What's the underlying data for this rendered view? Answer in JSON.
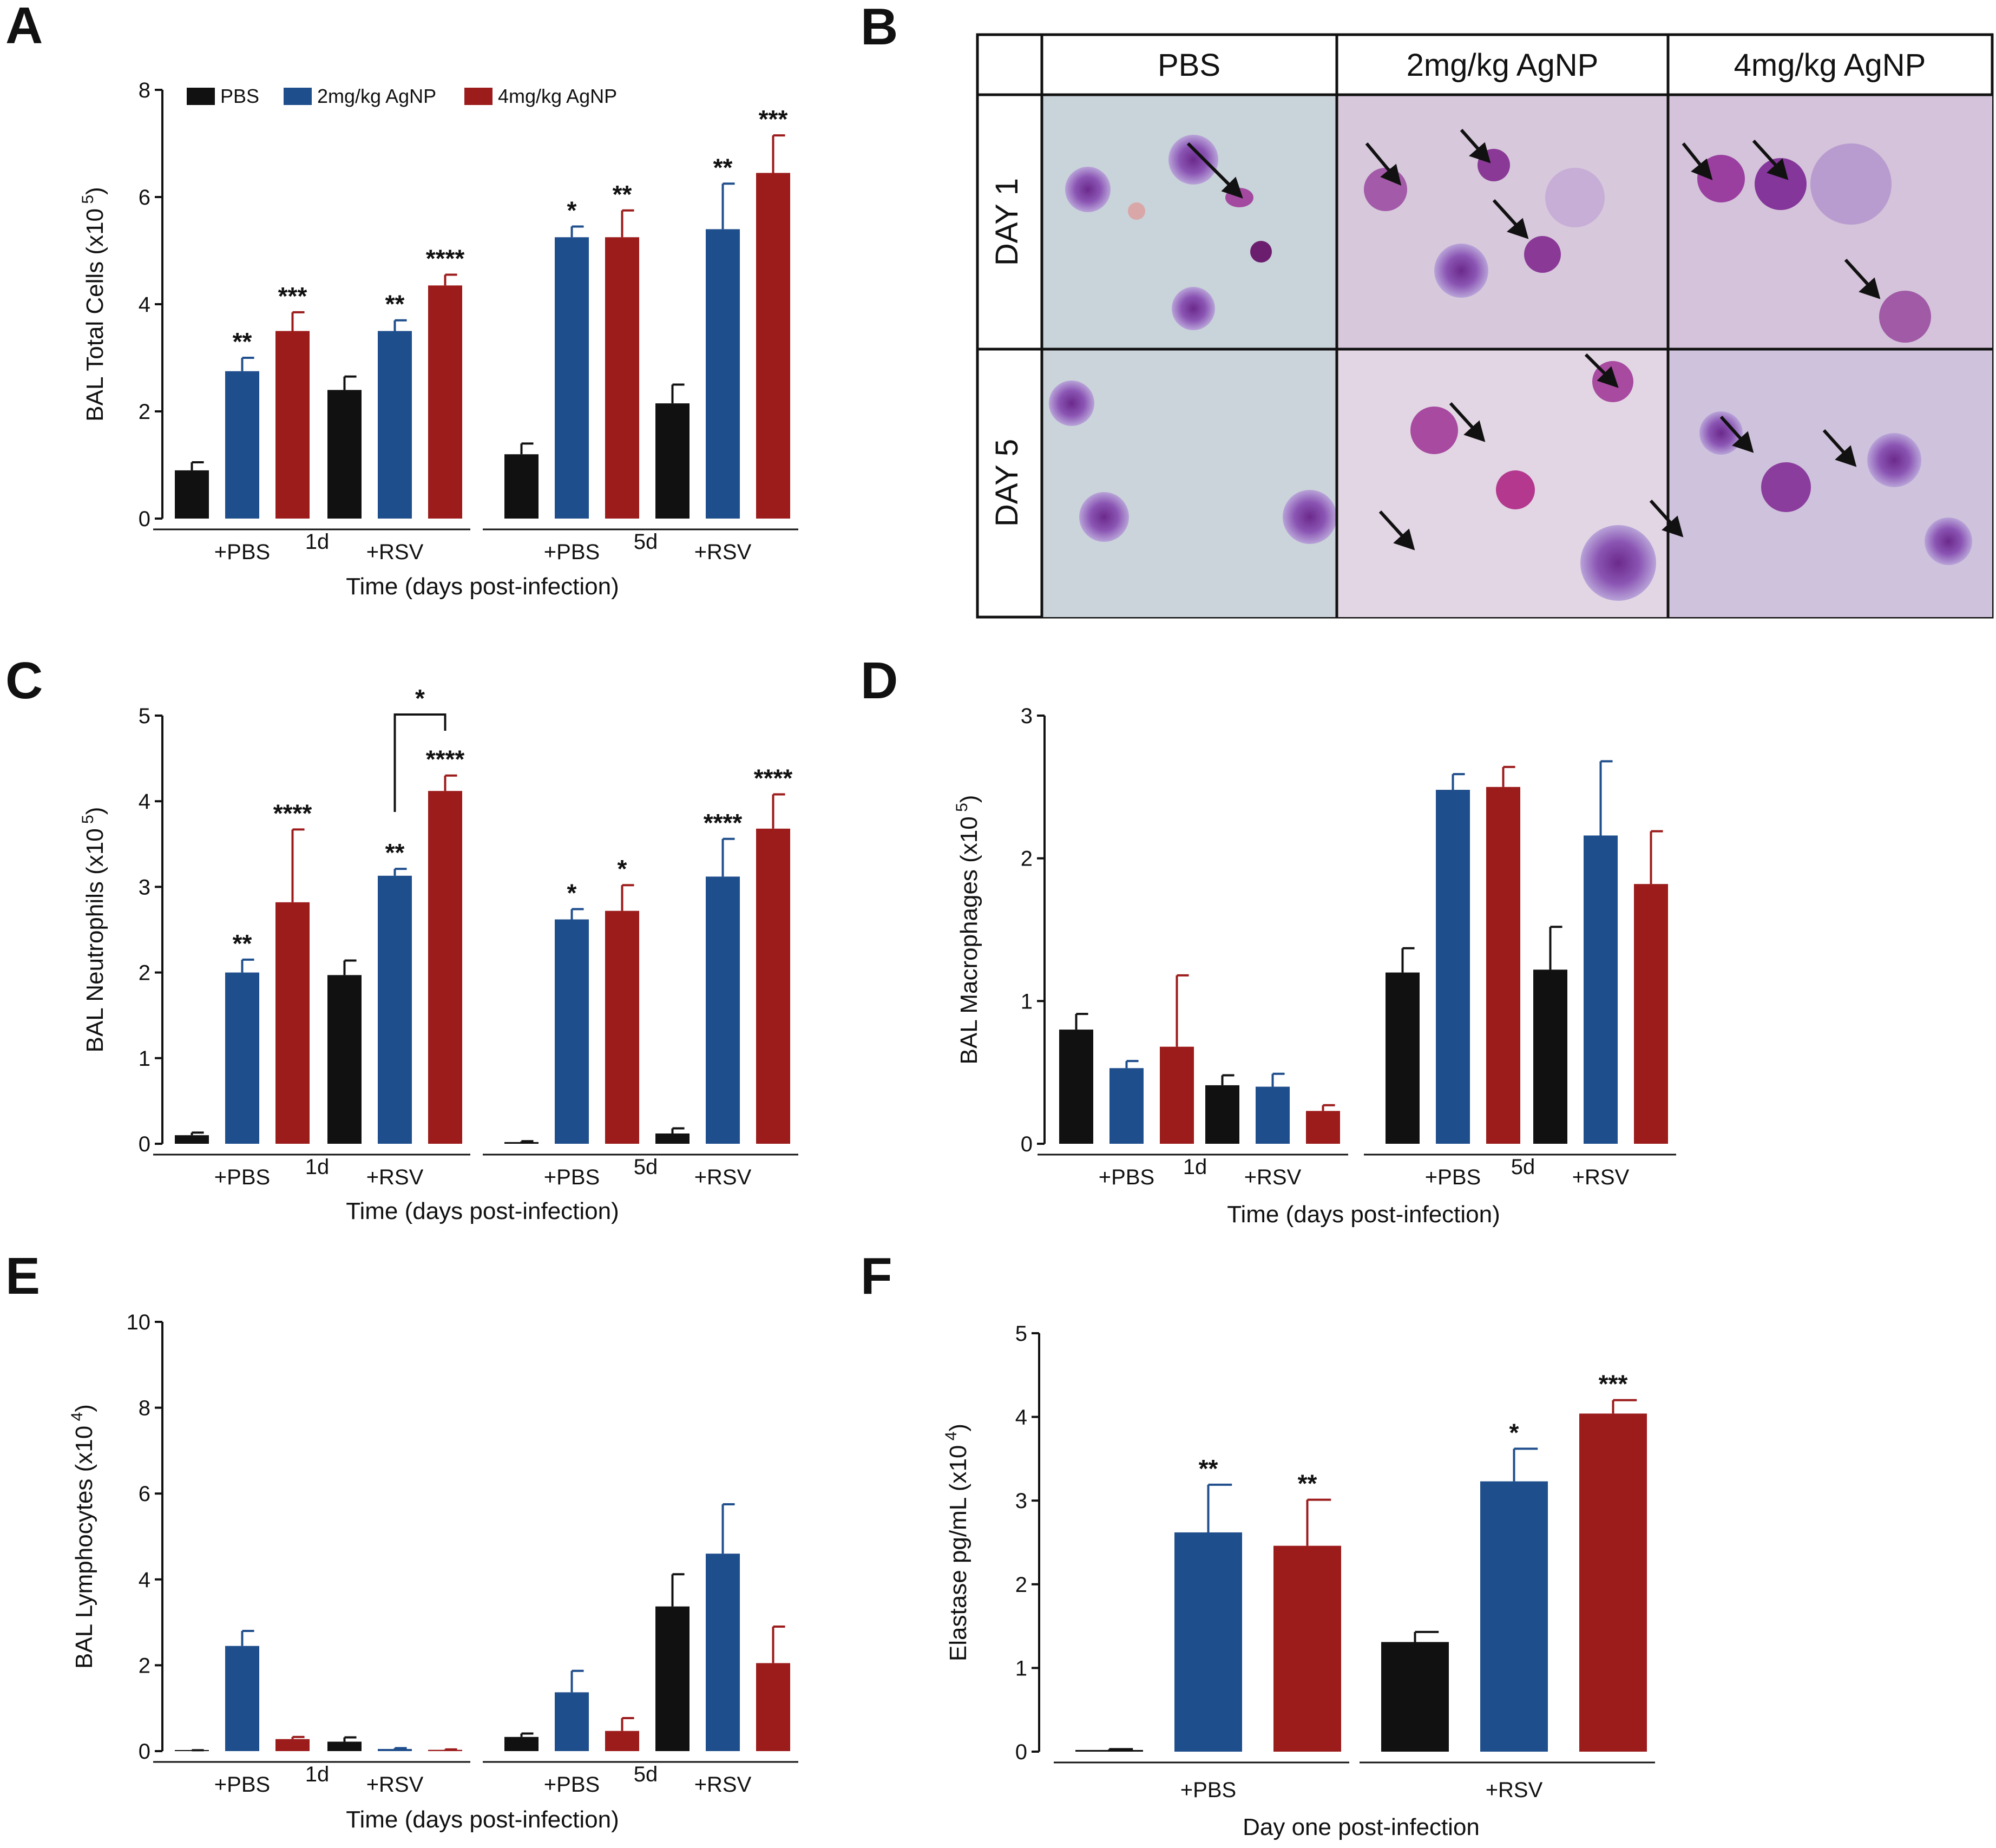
{
  "colors": {
    "PBS": "#111111",
    "2mg/kg AgNP": "#1f4e8c",
    "4mg/kg AgNP": "#9c1b1b",
    "axis": "#111111"
  },
  "legend": {
    "items": [
      "PBS",
      "2mg/kg AgNP",
      "4mg/kg AgNP"
    ]
  },
  "panel_B": {
    "letter": "B",
    "columns": [
      "PBS",
      "2mg/kg AgNP",
      "4mg/kg AgNP"
    ],
    "rows": [
      "DAY 1",
      "DAY 5"
    ]
  },
  "chart_data": [
    {
      "panel": "A",
      "type": "bar",
      "ylabel": "BAL Total Cells (x10",
      "ylabel_exp": "5",
      "ylabel_close": ")",
      "xlabel": "Time (days post-infection)",
      "ylim": [
        0,
        8
      ],
      "yticks": [
        0,
        2,
        4,
        6,
        8
      ],
      "series_names": [
        "PBS",
        "2mg/kg AgNP",
        "4mg/kg AgNP"
      ],
      "groups": [
        {
          "label": "+PBS",
          "day": "1d",
          "values": [
            0.9,
            2.75,
            3.5
          ],
          "errors": [
            0.15,
            0.25,
            0.35
          ],
          "stars": [
            "",
            "**",
            "***"
          ]
        },
        {
          "label": "+RSV",
          "day": "1d",
          "values": [
            2.4,
            3.5,
            4.35
          ],
          "errors": [
            0.25,
            0.2,
            0.2
          ],
          "stars": [
            "",
            "**",
            "****"
          ]
        },
        {
          "label": "+PBS",
          "day": "5d",
          "values": [
            1.2,
            5.25,
            5.25
          ],
          "errors": [
            0.2,
            0.2,
            0.5
          ],
          "stars": [
            "",
            "*",
            "**"
          ]
        },
        {
          "label": "+RSV",
          "day": "5d",
          "values": [
            2.15,
            5.4,
            6.45
          ],
          "errors": [
            0.35,
            0.85,
            0.7
          ],
          "stars": [
            "",
            "**",
            "***"
          ]
        }
      ]
    },
    {
      "panel": "C",
      "type": "bar",
      "ylabel": "BAL Neutrophils (x10",
      "ylabel_exp": "5",
      "ylabel_close": ")",
      "xlabel": "Time (days post-infection)",
      "ylim": [
        0,
        5
      ],
      "yticks": [
        0,
        1,
        2,
        3,
        4,
        5
      ],
      "series_names": [
        "PBS",
        "2mg/kg AgNP",
        "4mg/kg AgNP"
      ],
      "groups": [
        {
          "label": "+PBS",
          "day": "1d",
          "values": [
            0.1,
            2.0,
            2.82
          ],
          "errors": [
            0.03,
            0.15,
            0.85
          ],
          "stars": [
            "",
            "**",
            "****"
          ]
        },
        {
          "label": "+RSV",
          "day": "1d",
          "values": [
            1.97,
            3.13,
            4.12
          ],
          "errors": [
            0.17,
            0.08,
            0.18
          ],
          "stars": [
            "",
            "**",
            "****"
          ]
        },
        {
          "label": "+PBS",
          "day": "5d",
          "values": [
            0.02,
            2.62,
            2.72
          ],
          "errors": [
            0.01,
            0.12,
            0.3
          ],
          "stars": [
            "",
            "*",
            "*"
          ]
        },
        {
          "label": "+RSV",
          "day": "5d",
          "values": [
            0.12,
            3.12,
            3.68
          ],
          "errors": [
            0.06,
            0.44,
            0.4
          ],
          "stars": [
            "",
            "****",
            "****"
          ]
        }
      ],
      "bracket_star": "*"
    },
    {
      "panel": "D",
      "type": "bar",
      "ylabel": "BAL Macrophages (x10",
      "ylabel_exp": "5",
      "ylabel_close": ")",
      "xlabel": "Time (days post-infection)",
      "ylim": [
        0,
        3
      ],
      "yticks": [
        0,
        1,
        2,
        3
      ],
      "series_names": [
        "PBS",
        "2mg/kg AgNP",
        "4mg/kg AgNP"
      ],
      "groups": [
        {
          "label": "+PBS",
          "day": "1d",
          "values": [
            0.8,
            0.53,
            0.68
          ],
          "errors": [
            0.11,
            0.05,
            0.5
          ],
          "stars": [
            "",
            "",
            ""
          ]
        },
        {
          "label": "+RSV",
          "day": "1d",
          "values": [
            0.41,
            0.4,
            0.23
          ],
          "errors": [
            0.07,
            0.09,
            0.04
          ],
          "stars": [
            "",
            "",
            ""
          ]
        },
        {
          "label": "+PBS",
          "day": "5d",
          "values": [
            1.2,
            2.48,
            2.5
          ],
          "errors": [
            0.17,
            0.11,
            0.14
          ],
          "stars": [
            "",
            "",
            ""
          ]
        },
        {
          "label": "+RSV",
          "day": "5d",
          "values": [
            1.22,
            2.16,
            1.82
          ],
          "errors": [
            0.3,
            0.52,
            0.37
          ],
          "stars": [
            "",
            "",
            ""
          ]
        }
      ]
    },
    {
      "panel": "E",
      "type": "bar",
      "ylabel": "BAL Lymphocytes (x10",
      "ylabel_exp": "4",
      "ylabel_close": ")",
      "xlabel": "Time (days post-infection)",
      "ylim": [
        0,
        10
      ],
      "yticks": [
        0,
        2,
        4,
        6,
        8,
        10
      ],
      "series_names": [
        "PBS",
        "2mg/kg AgNP",
        "4mg/kg AgNP"
      ],
      "groups": [
        {
          "label": "+PBS",
          "day": "1d",
          "values": [
            0.0,
            2.45,
            0.28
          ],
          "errors": [
            0.02,
            0.35,
            0.05
          ],
          "stars": [
            "",
            "",
            ""
          ]
        },
        {
          "label": "+RSV",
          "day": "1d",
          "values": [
            0.22,
            0.05,
            0.03
          ],
          "errors": [
            0.1,
            0.02,
            0.01
          ],
          "stars": [
            "",
            "",
            ""
          ]
        },
        {
          "label": "+PBS",
          "day": "5d",
          "values": [
            0.33,
            1.37,
            0.47
          ],
          "errors": [
            0.08,
            0.5,
            0.3
          ],
          "stars": [
            "",
            "",
            ""
          ]
        },
        {
          "label": "+RSV",
          "day": "5d",
          "values": [
            3.37,
            4.6,
            2.05
          ],
          "errors": [
            0.75,
            1.15,
            0.85
          ],
          "stars": [
            "",
            "",
            ""
          ]
        }
      ]
    },
    {
      "panel": "F",
      "type": "bar",
      "ylabel": "Elastase pg/mL (x10",
      "ylabel_exp": "4",
      "ylabel_close": ")",
      "xlabel": "Day one post-infection",
      "ylim": [
        0,
        5
      ],
      "yticks": [
        0,
        1,
        2,
        3,
        4,
        5
      ],
      "series_names": [
        "PBS",
        "2mg/kg AgNP",
        "4mg/kg AgNP"
      ],
      "groups": [
        {
          "label": "+PBS",
          "day": "",
          "values": [
            0.02,
            2.62,
            2.46
          ],
          "errors": [
            0.01,
            0.57,
            0.55
          ],
          "stars": [
            "",
            "**",
            "**"
          ]
        },
        {
          "label": "+RSV",
          "day": "",
          "values": [
            1.31,
            3.23,
            4.04
          ],
          "errors": [
            0.12,
            0.39,
            0.16
          ],
          "stars": [
            "",
            "*",
            "***"
          ]
        }
      ]
    }
  ]
}
